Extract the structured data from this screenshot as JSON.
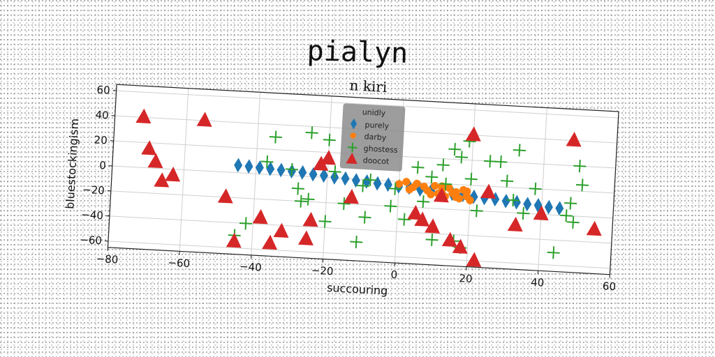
{
  "suptitle": "pialyn",
  "chart_data": {
    "type": "scatter",
    "title": "n kiri",
    "xlabel": "succouring",
    "ylabel": "bluestockingism",
    "xlim": [
      -80,
      60
    ],
    "ylim": [
      -65,
      65
    ],
    "xticks": [
      -80,
      -60,
      -40,
      -20,
      0,
      20,
      40,
      60
    ],
    "yticks": [
      -60,
      -40,
      -20,
      0,
      20,
      40,
      60
    ],
    "grid": true,
    "legend": {
      "title": "unidly",
      "placement": "top-center"
    },
    "series": [
      {
        "name": "purely",
        "marker": "diamond",
        "color": "#1f77b4",
        "x": [
          -45,
          -42,
          -39,
          -36,
          -33,
          -30,
          -27,
          -24,
          -21,
          -18,
          -15,
          -12,
          -9,
          -6,
          -3,
          0,
          3,
          6,
          9,
          12,
          15,
          18,
          21,
          24,
          27,
          30,
          33,
          36,
          39,
          42,
          45
        ],
        "y": [
          6,
          5.5,
          5,
          4.5,
          4,
          3.5,
          3,
          2,
          1.5,
          0.5,
          0,
          -1,
          -1.5,
          -2.5,
          -3,
          -4,
          -4.5,
          -5.5,
          -6,
          -7,
          -7.5,
          -8,
          -9,
          -9.5,
          -10,
          -11,
          -11.5,
          -12.5,
          -13,
          -14,
          -14.5
        ]
      },
      {
        "name": "darby",
        "marker": "circle",
        "color": "#ff7f0e",
        "x": [
          0,
          2,
          4,
          5,
          7,
          8,
          10,
          11,
          12,
          13,
          14,
          15,
          16,
          17,
          18,
          19,
          20,
          3,
          9,
          12,
          16,
          19
        ],
        "y": [
          -2,
          0,
          -4,
          -1,
          -3,
          -6,
          -2,
          -8,
          -5,
          -10,
          -3,
          -7,
          -6,
          -11,
          -4,
          -9,
          -12,
          -6,
          -9,
          -2,
          -10,
          -5
        ]
      },
      {
        "name": "ghostess",
        "marker": "plus",
        "color": "#2ca02c",
        "x": [
          -35,
          -25,
          -37,
          -27,
          -20,
          -30,
          -25,
          -28,
          -11,
          -10,
          -9,
          -8,
          -15,
          -18,
          -20,
          -45,
          -42,
          -2,
          -1,
          2,
          5,
          7,
          9,
          10,
          12,
          13,
          15,
          16,
          17,
          18,
          19,
          20,
          22,
          25,
          28,
          30,
          32,
          33,
          35,
          38,
          44,
          47,
          48,
          49,
          50,
          51
        ],
        "y": [
          30,
          35,
          10,
          -20,
          -35,
          5,
          -18,
          -10,
          -50,
          -5,
          -30,
          0,
          -20,
          5,
          30,
          -50,
          -40,
          -20,
          -6,
          -30,
          12,
          -15,
          5,
          -45,
          15,
          0,
          28,
          -45,
          22,
          -50,
          35,
          5,
          -20,
          20,
          20,
          5,
          -10,
          30,
          -20,
          0,
          -50,
          -20,
          -10,
          -25,
          20,
          5
        ]
      },
      {
        "name": "doocot",
        "marker": "triangle",
        "color": "#d62728",
        "x": [
          -72,
          -70,
          -68,
          -66,
          -63,
          -55,
          -48,
          -45,
          -38,
          -35,
          -32,
          -25,
          -24,
          -22,
          -20,
          -13,
          5,
          7,
          10,
          12,
          15,
          18,
          20,
          22,
          25,
          33,
          40,
          48,
          55
        ],
        "y": [
          40,
          15,
          5,
          -10,
          -5,
          40,
          -20,
          -55,
          -35,
          -55,
          -45,
          -50,
          -35,
          10,
          15,
          -15,
          -25,
          -30,
          -35,
          -10,
          -45,
          -50,
          40,
          -60,
          -5,
          -30,
          -20,
          40,
          -30
        ]
      }
    ]
  }
}
